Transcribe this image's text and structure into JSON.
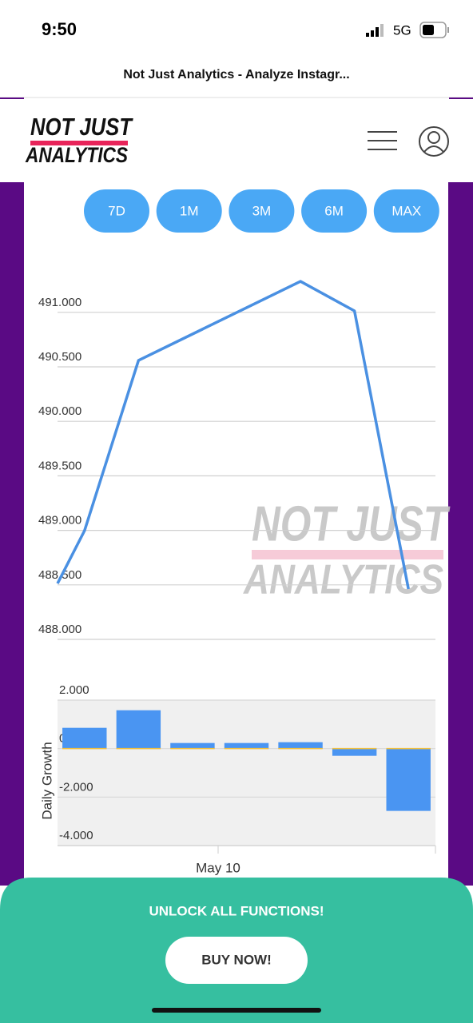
{
  "status_bar": {
    "time": "9:50",
    "network": "5G"
  },
  "browser": {
    "page_title": "Not Just Analytics - Analyze Instagr..."
  },
  "header": {
    "logo_top": "NOT JUST",
    "logo_bottom": "ANALYTICS"
  },
  "range_buttons": [
    "7D",
    "1M",
    "3M",
    "6M",
    "MAX"
  ],
  "watermark": {
    "line1": "NOT JUST",
    "line2": "ANALYTICS"
  },
  "chart_data": [
    {
      "type": "line",
      "x": [
        -0.5,
        0,
        1,
        4,
        5,
        6
      ],
      "xlim": [
        -0.5,
        6.5
      ],
      "values": [
        488513,
        488997,
        490559,
        491284,
        491013,
        488462
      ],
      "color": "#4a90e2",
      "ylim": [
        488000,
        491500
      ],
      "yticks": [
        {
          "value": 488000,
          "label": "488.000"
        },
        {
          "value": 488500,
          "label": "488.500"
        },
        {
          "value": 489000,
          "label": "489.000"
        },
        {
          "value": 489500,
          "label": "489.500"
        },
        {
          "value": 490000,
          "label": "490.000"
        },
        {
          "value": 490500,
          "label": "490.500"
        },
        {
          "value": 491000,
          "label": "491.000"
        }
      ],
      "grid": true
    },
    {
      "type": "bar",
      "y_label": "Daily Growth",
      "x_tick": "May 10",
      "categories": [
        null,
        null,
        null,
        null,
        null,
        null,
        null
      ],
      "values": [
        857,
        1582,
        231,
        231,
        264,
        -297,
        -2570
      ],
      "color": "#4a95f2",
      "ylim": [
        -4000,
        2000
      ],
      "yticks": [
        {
          "value": 2000,
          "label": "2.000"
        },
        0,
        {
          "value": -2000,
          "label": "-2.000"
        },
        {
          "value": -4000,
          "label": "-4.000"
        }
      ],
      "grid": true
    }
  ],
  "banner": {
    "title": "UNLOCK ALL FUNCTIONS!",
    "button": "BUY NOW!"
  }
}
